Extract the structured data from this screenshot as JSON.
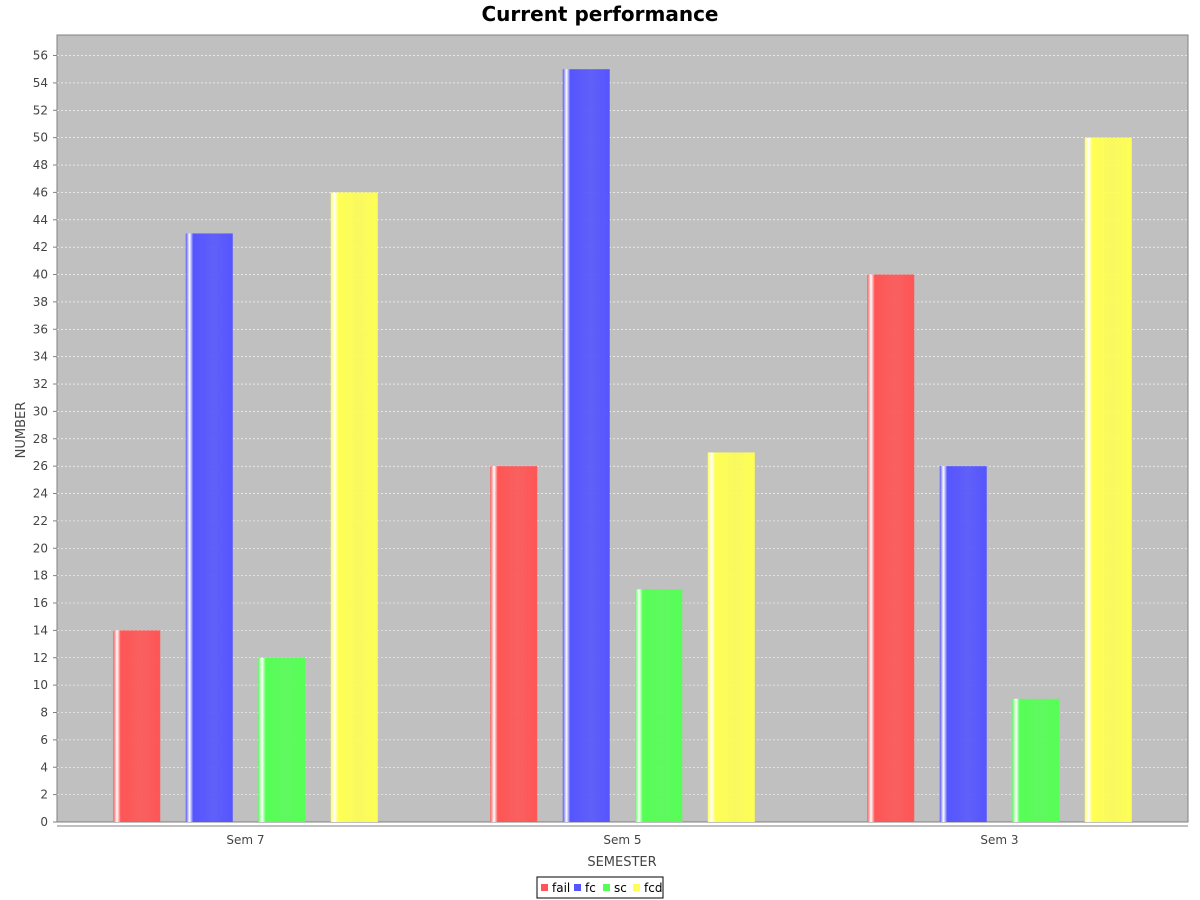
{
  "chart_data": {
    "type": "bar",
    "title": "Current performance",
    "xlabel": "SEMESTER",
    "ylabel": "NUMBER",
    "categories": [
      "Sem 7",
      "Sem 5",
      "Sem 3"
    ],
    "series": [
      {
        "name": "fail",
        "color": "#ff5555",
        "values": [
          14,
          26,
          40
        ]
      },
      {
        "name": "fc",
        "color": "#5555ff",
        "values": [
          43,
          55,
          26
        ]
      },
      {
        "name": "sc",
        "color": "#55ff55",
        "values": [
          12,
          17,
          9
        ]
      },
      {
        "name": "fcd",
        "color": "#ffff55",
        "values": [
          46,
          27,
          50
        ]
      }
    ],
    "ylim": [
      0,
      57.5
    ],
    "yticks": [
      0,
      2,
      4,
      6,
      8,
      10,
      12,
      14,
      16,
      18,
      20,
      22,
      24,
      26,
      28,
      30,
      32,
      34,
      36,
      38,
      40,
      42,
      44,
      46,
      48,
      50,
      52,
      54,
      56
    ],
    "grid": true,
    "legend_position": "bottom-center",
    "plot_background": "#c0c0c0",
    "gridline_color": "#ffffff"
  }
}
